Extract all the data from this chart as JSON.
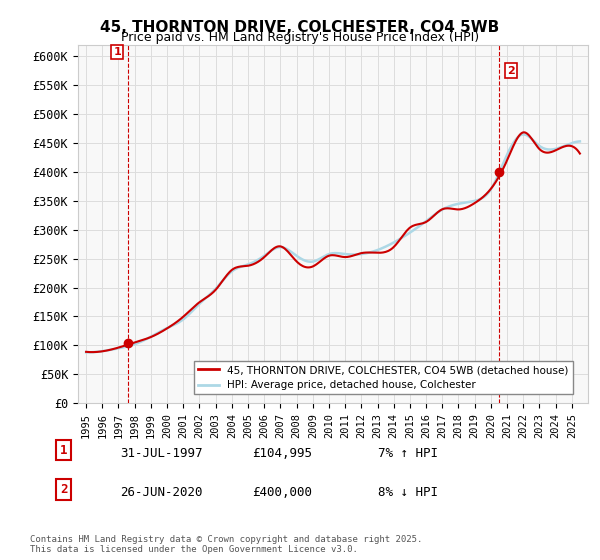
{
  "title_line1": "45, THORNTON DRIVE, COLCHESTER, CO4 5WB",
  "title_line2": "Price paid vs. HM Land Registry's House Price Index (HPI)",
  "ylabel_ticks": [
    "£0",
    "£50K",
    "£100K",
    "£150K",
    "£200K",
    "£250K",
    "£300K",
    "£350K",
    "£400K",
    "£450K",
    "£500K",
    "£550K",
    "£600K"
  ],
  "ytick_vals": [
    0,
    50000,
    100000,
    150000,
    200000,
    250000,
    300000,
    350000,
    400000,
    450000,
    500000,
    550000,
    600000
  ],
  "hpi_color": "#add8e6",
  "price_color": "#cc0000",
  "marker1_date_x": 1997.58,
  "marker1_price": 104995,
  "marker2_date_x": 2020.48,
  "marker2_price": 400000,
  "vline1_x": 1997.58,
  "vline2_x": 2020.48,
  "legend_label1": "45, THORNTON DRIVE, COLCHESTER, CO4 5WB (detached house)",
  "legend_label2": "HPI: Average price, detached house, Colchester",
  "note1_box": "1",
  "note1_date": "31-JUL-1997",
  "note1_price": "£104,995",
  "note1_hpi": "7% ↑ HPI",
  "note2_box": "2",
  "note2_date": "26-JUN-2020",
  "note2_price": "£400,000",
  "note2_hpi": "8% ↓ HPI",
  "copyright": "Contains HM Land Registry data © Crown copyright and database right 2025.\nThis data is licensed under the Open Government Licence v3.0.",
  "xmin": 1994.5,
  "xmax": 2026.0,
  "ymin": 0,
  "ymax": 620000,
  "bg_color": "#f8f8f8",
  "grid_color": "#dddddd"
}
